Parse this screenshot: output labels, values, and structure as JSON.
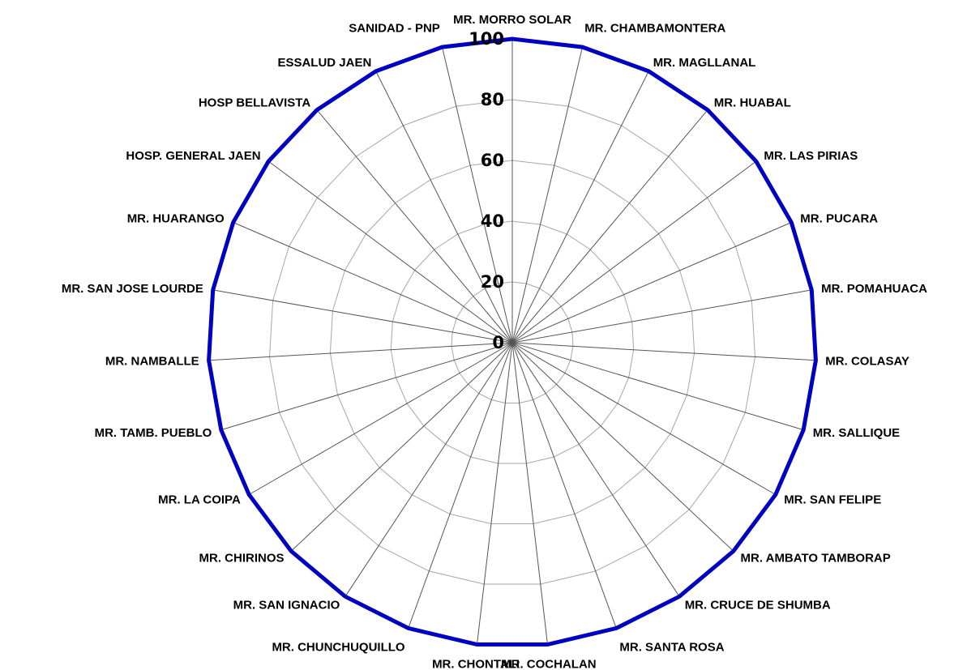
{
  "chart_data": {
    "type": "radar",
    "title": "",
    "categories": [
      "MR. MORRO SOLAR",
      "MR. CHAMBAMONTERA",
      "MR. MAGLLANAL",
      "MR. HUABAL",
      "MR. LAS PIRIAS",
      "MR. PUCARA",
      "MR. POMAHUACA",
      "MR. COLASAY",
      "MR. SALLIQUE",
      "MR. SAN FELIPE",
      "MR. AMBATO TAMBORAP",
      "MR. CRUCE DE SHUMBA",
      "MR. SANTA ROSA",
      "MR. COCHALAN",
      "MR. CHONTALI",
      "MR. CHUNCHUQUILLO",
      "MR. SAN IGNACIO",
      "MR. CHIRINOS",
      "MR. LA COIPA",
      "MR. TAMB. PUEBLO",
      "MR. NAMBALLE",
      "MR. SAN JOSE LOURDE",
      "MR. HUARANGO",
      "HOSP. GENERAL JAEN",
      "HOSP BELLAVISTA",
      "ESSALUD JAEN",
      "SANIDAD - PNP"
    ],
    "series": [
      {
        "values": [
          100,
          100,
          100,
          100,
          100,
          100,
          100,
          100,
          100,
          100,
          100,
          100,
          100,
          100,
          100,
          100,
          100,
          100,
          100,
          100,
          100,
          100,
          100,
          100,
          100,
          100,
          100
        ],
        "color": "#0000c0"
      }
    ],
    "rticks": [
      "0",
      "20",
      "40",
      "60",
      "80",
      "100"
    ],
    "rlim": [
      0,
      100
    ],
    "grid": true,
    "legend": "none"
  }
}
